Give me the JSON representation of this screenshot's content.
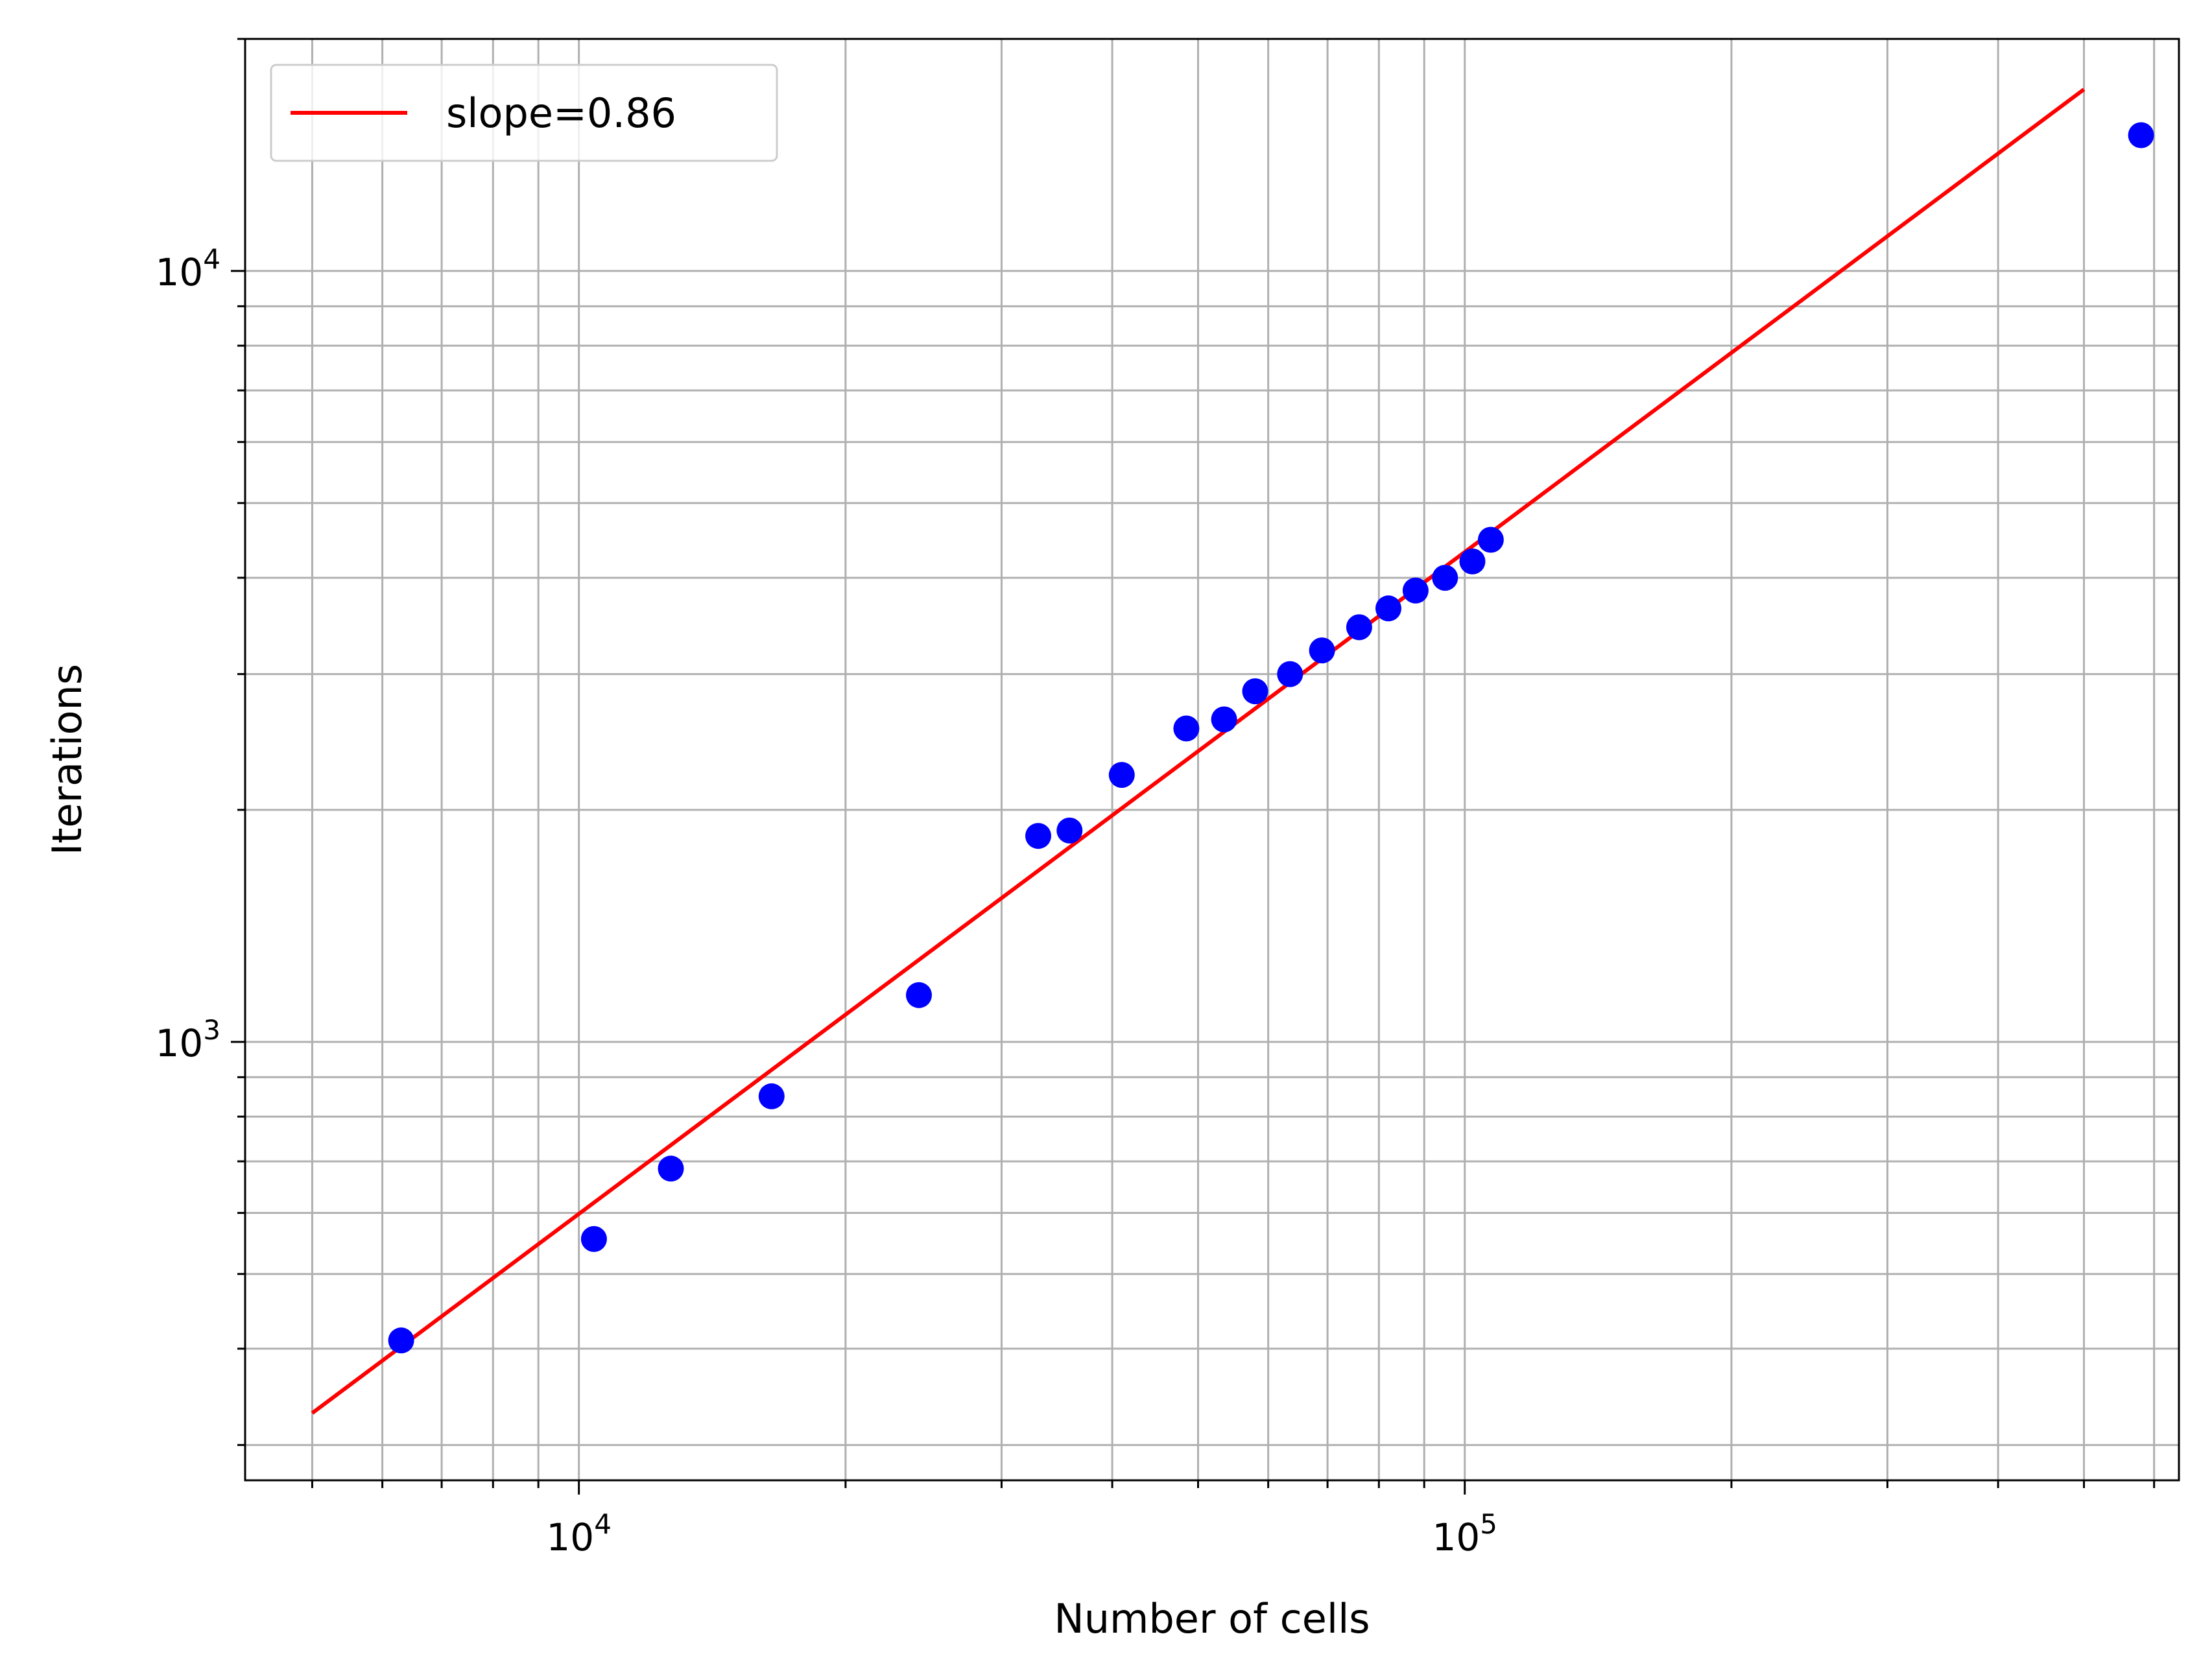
{
  "chart_data": {
    "type": "scatter",
    "title": "",
    "xlabel": "Number of cells",
    "ylabel": "Iterations",
    "xscale": "log",
    "yscale": "log",
    "xlim": [
      4200,
      640000
    ],
    "ylim": [
      270,
      20000
    ],
    "grid": {
      "major": true,
      "minor": true
    },
    "legend": {
      "placement": "top-left"
    },
    "x_ticks": [
      {
        "value": 10000,
        "base": "10",
        "exp": "4"
      },
      {
        "value": 100000,
        "base": "10",
        "exp": "5"
      }
    ],
    "y_ticks": [
      {
        "value": 1000,
        "base": "10",
        "exp": "3"
      },
      {
        "value": 10000,
        "base": "10",
        "exp": "4"
      }
    ],
    "series": [
      {
        "kind": "scatter",
        "color": "#0000ff",
        "points": [
          [
            6300,
            410
          ],
          [
            10400,
            555
          ],
          [
            12700,
            685
          ],
          [
            16500,
            850
          ],
          [
            24200,
            1150
          ],
          [
            33000,
            1850
          ],
          [
            35800,
            1880
          ],
          [
            41000,
            2220
          ],
          [
            48500,
            2550
          ],
          [
            53500,
            2620
          ],
          [
            58000,
            2850
          ],
          [
            63500,
            3000
          ],
          [
            69000,
            3220
          ],
          [
            76000,
            3450
          ],
          [
            82000,
            3650
          ],
          [
            88000,
            3850
          ],
          [
            95000,
            4000
          ],
          [
            102000,
            4200
          ],
          [
            107000,
            4480
          ],
          [
            580000,
            15000
          ]
        ]
      },
      {
        "kind": "line",
        "name": "slope=0.86",
        "color": "#ff0000",
        "points": [
          [
            5000,
            330
          ],
          [
            500000,
            17200
          ]
        ]
      }
    ]
  }
}
